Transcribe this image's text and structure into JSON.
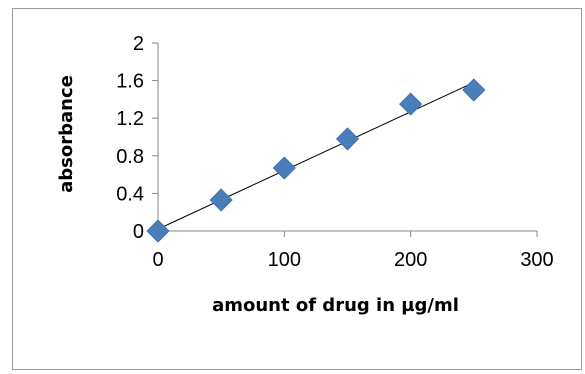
{
  "chart_data": {
    "type": "scatter",
    "title": "",
    "xlabel": "amount of drug in µg/ml",
    "ylabel": "absorbance",
    "xlim": [
      0,
      300
    ],
    "ylim": [
      0,
      2
    ],
    "x_ticks": [
      0,
      100,
      200,
      300
    ],
    "y_ticks": [
      0,
      0.4,
      0.8,
      1.2,
      1.6,
      2
    ],
    "y_tick_labels": [
      "0",
      "0.4",
      "0.8",
      "1.2",
      "1.6",
      "2"
    ],
    "series": [
      {
        "x": [
          0,
          50,
          100,
          150,
          200,
          250
        ],
        "y": [
          0,
          0.33,
          0.67,
          0.98,
          1.35,
          1.5
        ],
        "color": "#4a7ebb",
        "marker": "diamond"
      }
    ],
    "trendline": {
      "type": "linear",
      "x": [
        0,
        250
      ],
      "y": [
        0.02,
        1.58
      ],
      "color": "#000000"
    },
    "grid": false,
    "legend": "none"
  }
}
